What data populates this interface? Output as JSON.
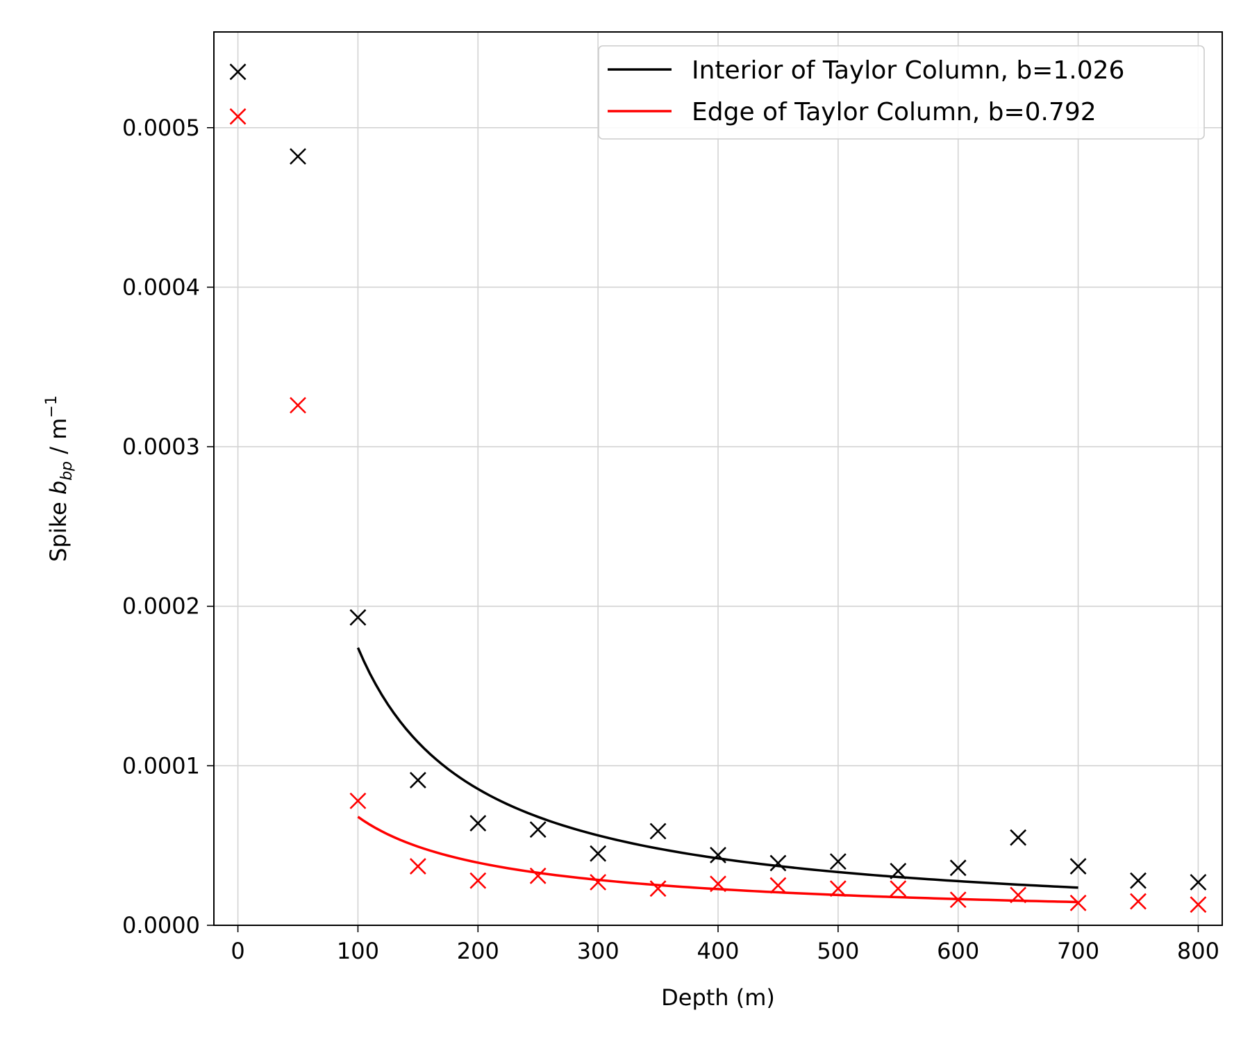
{
  "chart_data": {
    "type": "scatter",
    "xlabel": "Depth (m)",
    "ylabel": {
      "prefix": "Spike ",
      "symbol": "b",
      "subscript": "bp",
      "unit": " / m",
      "exponent": "−1"
    },
    "xlim": [
      -20,
      820
    ],
    "ylim": [
      0,
      0.00056
    ],
    "x_ticks": [
      {
        "value": 0,
        "label": "0"
      },
      {
        "value": 100,
        "label": "100"
      },
      {
        "value": 200,
        "label": "200"
      },
      {
        "value": 300,
        "label": "300"
      },
      {
        "value": 400,
        "label": "400"
      },
      {
        "value": 500,
        "label": "500"
      },
      {
        "value": 600,
        "label": "600"
      },
      {
        "value": 700,
        "label": "700"
      },
      {
        "value": 800,
        "label": "800"
      }
    ],
    "y_ticks": [
      {
        "value": 0,
        "label": "0.0000"
      },
      {
        "value": 0.0001,
        "label": "0.0001"
      },
      {
        "value": 0.0002,
        "label": "0.0002"
      },
      {
        "value": 0.0003,
        "label": "0.0003"
      },
      {
        "value": 0.0004,
        "label": "0.0004"
      },
      {
        "value": 0.0005,
        "label": "0.0005"
      }
    ],
    "grid": true,
    "legend_position": "top-right",
    "series": [
      {
        "name": "Interior of Taylor Column, b=1.026",
        "color": "#000000",
        "marker": "x",
        "points": [
          [
            0,
            0.000535
          ],
          [
            50,
            0.000482
          ],
          [
            100,
            0.000193
          ],
          [
            150,
            9.1e-05
          ],
          [
            200,
            6.4e-05
          ],
          [
            250,
            6e-05
          ],
          [
            300,
            4.5e-05
          ],
          [
            350,
            5.9e-05
          ],
          [
            400,
            4.4e-05
          ],
          [
            450,
            3.9e-05
          ],
          [
            500,
            4e-05
          ],
          [
            550,
            3.4e-05
          ],
          [
            600,
            3.6e-05
          ],
          [
            650,
            5.5e-05
          ],
          [
            700,
            3.7e-05
          ],
          [
            750,
            2.8e-05
          ],
          [
            800,
            2.7e-05
          ]
        ],
        "fit": {
          "amplitude": 1.74e-05,
          "exponent": 1.026,
          "x_start": 100,
          "x_end": 700,
          "reference_x": 100,
          "reference_y": 0.000174
        }
      },
      {
        "name": "Edge of Taylor Column, b=0.792",
        "color": "#ff0000",
        "marker": "x",
        "points": [
          [
            0,
            0.000507
          ],
          [
            50,
            0.000326
          ],
          [
            100,
            7.8e-05
          ],
          [
            150,
            3.7e-05
          ],
          [
            200,
            2.8e-05
          ],
          [
            250,
            3.1e-05
          ],
          [
            300,
            2.7e-05
          ],
          [
            350,
            2.3e-05
          ],
          [
            400,
            2.6e-05
          ],
          [
            450,
            2.5e-05
          ],
          [
            500,
            2.3e-05
          ],
          [
            550,
            2.3e-05
          ],
          [
            600,
            1.6e-05
          ],
          [
            650,
            1.9e-05
          ],
          [
            700,
            1.4e-05
          ],
          [
            750,
            1.5e-05
          ],
          [
            800,
            1.3e-05
          ]
        ],
        "fit": {
          "exponent": 0.792,
          "x_start": 100,
          "x_end": 700,
          "reference_x": 100,
          "reference_y": 6.8e-05
        }
      }
    ]
  }
}
